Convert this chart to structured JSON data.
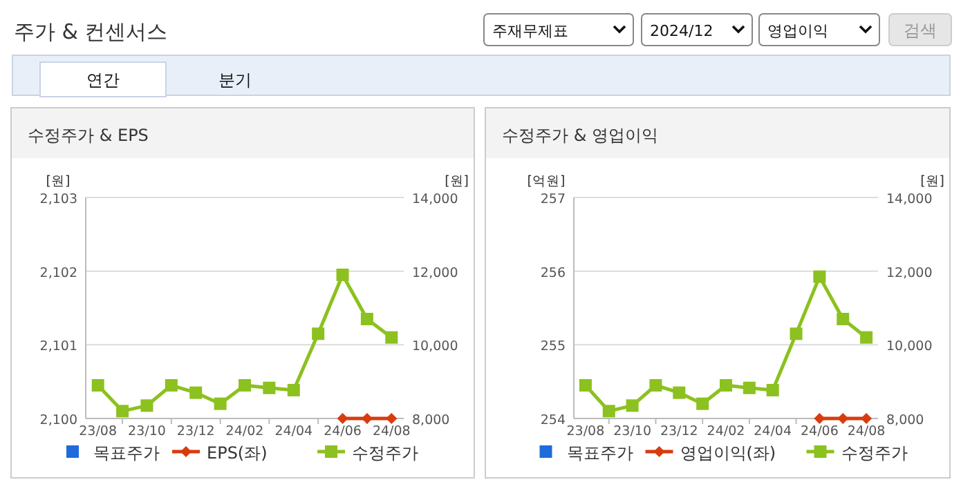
{
  "chart_data": [
    {
      "type": "other",
      "title": "주가 & 컨센서스",
      "annotations": [
        "주재무제표",
        "2024/12",
        "영업이익",
        "검색",
        "연간",
        "분기"
      ]
    },
    {
      "type": "line",
      "title": "수정주가 & EPS",
      "categories": [
        "23/08",
        null,
        "23/10",
        null,
        "23/12",
        null,
        "24/02",
        null,
        "24/04",
        null,
        "24/06",
        null,
        "24/08"
      ],
      "series": [
        {
          "name": "목표주가",
          "color": "#1e6bdc",
          "marker": "square",
          "values": [
            null,
            null,
            null,
            null,
            null,
            null,
            null,
            null,
            null,
            null,
            null,
            null,
            null
          ]
        },
        {
          "name": "EPS(좌)",
          "color": "#d83c0c",
          "marker": "diamond",
          "line_style": "solid",
          "axis": "y",
          "values": [
            null,
            null,
            null,
            null,
            null,
            null,
            null,
            null,
            null,
            null,
            2100,
            2100,
            2100
          ]
        },
        {
          "name": "수정주가",
          "color": "#8cc11f",
          "marker": "square",
          "line_style": "solid",
          "axis": "y2",
          "values": [
            8900,
            8200,
            8350,
            8900,
            8700,
            8400,
            8900,
            8830,
            8770,
            10300,
            11900,
            10700,
            10200
          ]
        }
      ],
      "ylabel": "[원]",
      "y2label": "[원]",
      "ylim": [
        2100,
        2103
      ],
      "yticks": [
        {
          "value": 2100,
          "label": "2,100"
        },
        {
          "value": 2101,
          "label": "2,101"
        },
        {
          "value": 2102,
          "label": "2,102"
        },
        {
          "value": 2103,
          "label": "2,103"
        }
      ],
      "y2lim": [
        8000,
        14000
      ],
      "y2ticks": [
        {
          "value": 8000,
          "label": "8,000"
        },
        {
          "value": 10000,
          "label": "10,000"
        },
        {
          "value": 12000,
          "label": "12,000"
        },
        {
          "value": 14000,
          "label": "14,000"
        }
      ],
      "grid": "y",
      "legend": "bottom"
    },
    {
      "type": "line",
      "title": "수정주가 & 영업이익",
      "categories": [
        "23/08",
        null,
        "23/10",
        null,
        "23/12",
        null,
        "24/02",
        null,
        "24/04",
        null,
        "24/06",
        null,
        "24/08"
      ],
      "series": [
        {
          "name": "목표주가",
          "color": "#1e6bdc",
          "marker": "square",
          "values": [
            null,
            null,
            null,
            null,
            null,
            null,
            null,
            null,
            null,
            null,
            null,
            null,
            null
          ]
        },
        {
          "name": "영업이익(좌)",
          "color": "#d83c0c",
          "marker": "diamond",
          "line_style": "solid",
          "axis": "y",
          "values": [
            null,
            null,
            null,
            null,
            null,
            null,
            null,
            null,
            null,
            null,
            254,
            254,
            254
          ]
        },
        {
          "name": "수정주가",
          "color": "#8cc11f",
          "marker": "square",
          "line_style": "solid",
          "axis": "y2",
          "values": [
            8900,
            8200,
            8350,
            8900,
            8700,
            8400,
            8900,
            8830,
            8770,
            10300,
            11850,
            10700,
            10200
          ]
        }
      ],
      "ylabel": "[억원]",
      "y2label": "[원]",
      "ylim": [
        254,
        257
      ],
      "yticks": [
        254,
        255,
        256,
        257
      ],
      "y2lim": [
        8000,
        14000
      ],
      "y2ticks": [
        {
          "value": 8000,
          "label": "8,000"
        },
        {
          "value": 10000,
          "label": "10,000"
        },
        {
          "value": 12000,
          "label": "12,000"
        },
        {
          "value": 14000,
          "label": "14,000"
        }
      ],
      "grid": "y",
      "legend": "bottom"
    }
  ]
}
